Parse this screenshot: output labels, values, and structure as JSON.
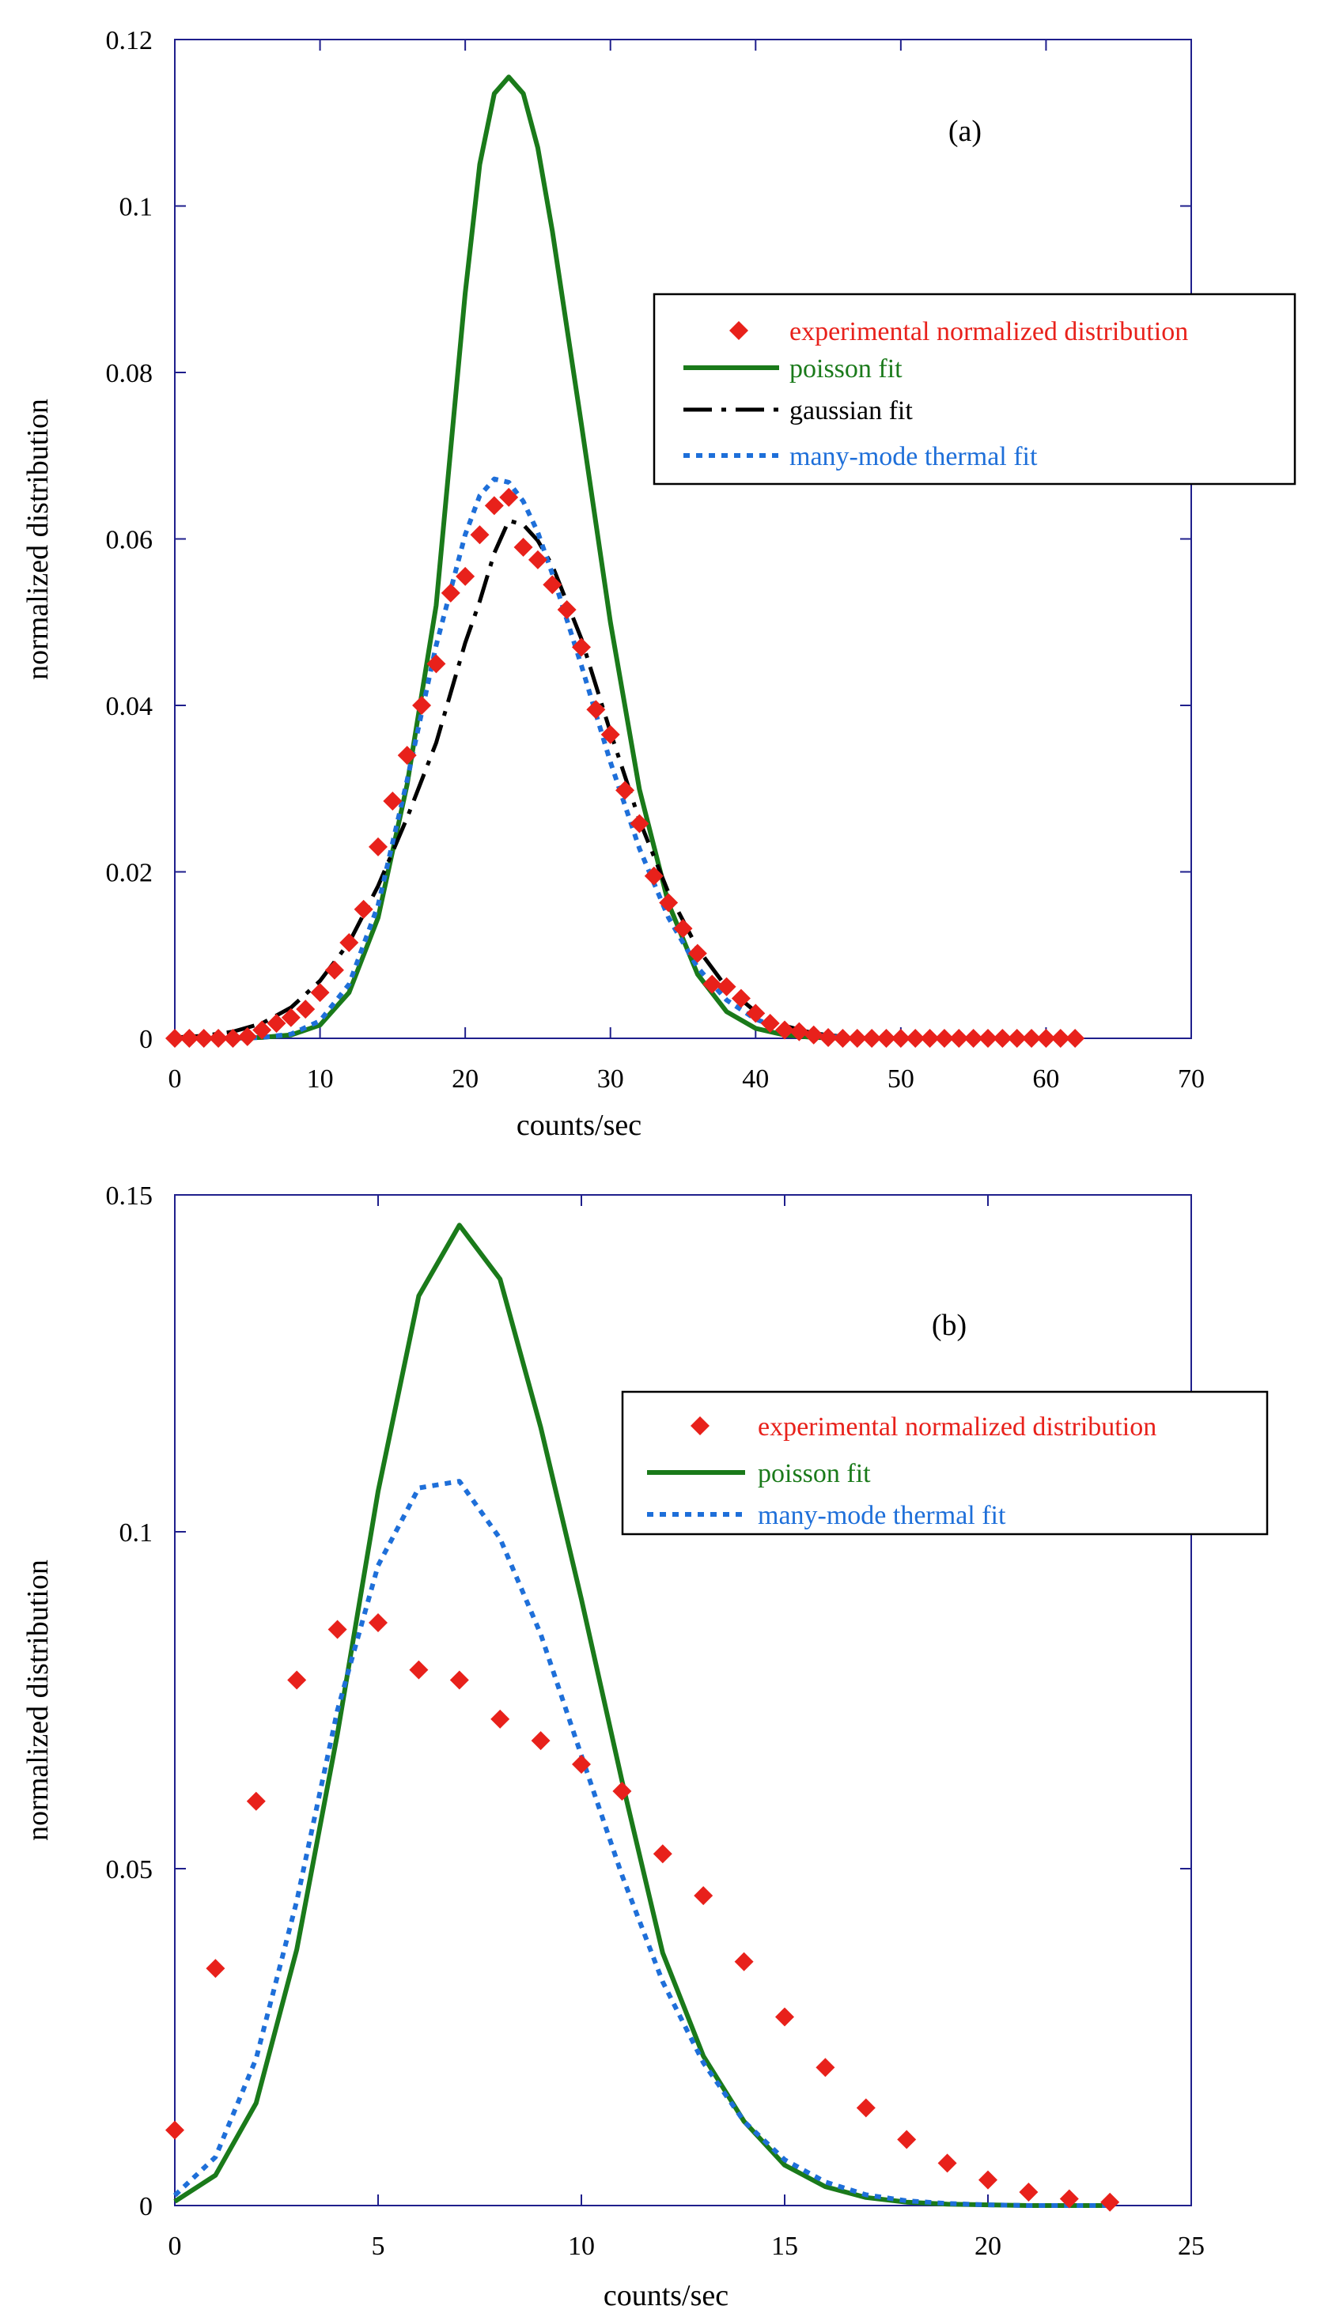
{
  "chart_data": [
    {
      "type": "scatter+line",
      "panel_label": "(a)",
      "xlabel": "counts/sec",
      "ylabel": "normalized distribution",
      "xlim": [
        0,
        70
      ],
      "ylim": [
        0,
        0.12
      ],
      "xticks": [
        "0",
        "10",
        "20",
        "30",
        "40",
        "50",
        "60",
        "70"
      ],
      "yticks": [
        "0",
        "0.02",
        "0.04",
        "0.06",
        "0.08",
        "0.1",
        "0.12"
      ],
      "legend_position": "top-right",
      "series": [
        {
          "name": "experimental normalized distribution",
          "style": "markers",
          "marker": "diamond",
          "color": "#e8211b",
          "x": [
            0,
            1,
            2,
            3,
            4,
            5,
            6,
            7,
            8,
            9,
            10,
            11,
            12,
            13,
            14,
            15,
            16,
            17,
            18,
            19,
            20,
            21,
            22,
            23,
            24,
            25,
            26,
            27,
            28,
            29,
            30,
            31,
            32,
            33,
            34,
            35,
            36,
            37,
            38,
            39,
            40,
            41,
            42,
            43,
            44,
            45,
            46,
            47,
            48,
            49,
            50,
            51,
            52,
            53,
            54,
            55,
            56,
            57,
            58,
            59,
            60,
            61,
            62
          ],
          "y": [
            0,
            0,
            0,
            0,
            0,
            0.0002,
            0.001,
            0.0018,
            0.0025,
            0.0035,
            0.0055,
            0.0082,
            0.0115,
            0.0155,
            0.023,
            0.0285,
            0.034,
            0.04,
            0.045,
            0.0535,
            0.0555,
            0.0605,
            0.064,
            0.065,
            0.059,
            0.0575,
            0.0545,
            0.0515,
            0.047,
            0.0395,
            0.0365,
            0.0298,
            0.0258,
            0.0195,
            0.0163,
            0.0132,
            0.0102,
            0.0065,
            0.0062,
            0.0048,
            0.003,
            0.0018,
            0.001,
            0.0008,
            0.0004,
            0.0001,
            0,
            0,
            0,
            0,
            0,
            0,
            0,
            0,
            0,
            0,
            0,
            0,
            0,
            0,
            0,
            0,
            0
          ]
        },
        {
          "name": "poisson fit",
          "style": "solid",
          "color": "#1a7a1a",
          "x": [
            0,
            2,
            4,
            6,
            8,
            10,
            12,
            14,
            16,
            18,
            20,
            21,
            22,
            23,
            24,
            25,
            26,
            28,
            30,
            32,
            34,
            36,
            38,
            40,
            42,
            44,
            46,
            48,
            50
          ],
          "y": [
            0,
            0,
            0,
            0.0001,
            0.0004,
            0.0016,
            0.0055,
            0.0145,
            0.0305,
            0.052,
            0.0895,
            0.105,
            0.1135,
            0.1155,
            0.1135,
            0.107,
            0.097,
            0.0738,
            0.05,
            0.0299,
            0.0162,
            0.0077,
            0.0032,
            0.0012,
            0.0004,
            0.0001,
            0,
            0,
            0
          ]
        },
        {
          "name": "gaussian fit",
          "style": "dash-dot",
          "color": "#000000",
          "x": [
            0,
            2,
            4,
            6,
            8,
            10,
            12,
            14,
            16,
            18,
            20,
            21,
            22,
            23,
            24,
            25,
            26,
            28,
            30,
            32,
            34,
            36,
            38,
            40,
            42,
            44,
            46
          ],
          "y": [
            0.0001,
            0.0003,
            0.0008,
            0.0018,
            0.0037,
            0.0069,
            0.0115,
            0.0183,
            0.0265,
            0.0355,
            0.0475,
            0.0525,
            0.0583,
            0.0622,
            0.0617,
            0.0598,
            0.0568,
            0.048,
            0.0368,
            0.0262,
            0.0175,
            0.0108,
            0.0061,
            0.0032,
            0.0015,
            0.0006,
            0.0002
          ]
        },
        {
          "name": "many-mode thermal fit",
          "style": "dotted",
          "color": "#1e6fd9",
          "x": [
            0,
            2,
            4,
            6,
            8,
            10,
            12,
            14,
            16,
            18,
            20,
            21,
            22,
            23,
            24,
            25,
            26,
            28,
            30,
            32,
            34,
            36,
            38,
            40,
            42,
            44,
            46
          ],
          "y": [
            0,
            0,
            0,
            0.0001,
            0.0005,
            0.0021,
            0.0065,
            0.016,
            0.031,
            0.0472,
            0.0605,
            0.0652,
            0.0672,
            0.0668,
            0.0645,
            0.0608,
            0.0558,
            0.0448,
            0.0332,
            0.0228,
            0.0145,
            0.0085,
            0.0046,
            0.0023,
            0.001,
            0.0004,
            0.0001
          ]
        }
      ]
    },
    {
      "type": "scatter+line",
      "panel_label": "(b)",
      "xlabel": "counts/sec",
      "ylabel": "normalized distribution",
      "xlim": [
        0,
        25
      ],
      "ylim": [
        0,
        0.15
      ],
      "xticks": [
        "0",
        "5",
        "10",
        "15",
        "20",
        "25"
      ],
      "yticks": [
        "0",
        "0.05",
        "0.1",
        "0.15"
      ],
      "legend_position": "top-right",
      "series": [
        {
          "name": "experimental normalized distribution",
          "style": "markers",
          "marker": "diamond",
          "color": "#e8211b",
          "x": [
            0,
            1,
            2,
            3,
            4,
            5,
            6,
            7,
            8,
            9,
            10,
            11,
            12,
            13,
            14,
            15,
            16,
            17,
            18,
            19,
            20,
            21,
            22,
            23
          ],
          "y": [
            0.0112,
            0.0352,
            0.06,
            0.078,
            0.0855,
            0.0865,
            0.0795,
            0.078,
            0.0722,
            0.069,
            0.0655,
            0.0615,
            0.0522,
            0.046,
            0.0362,
            0.028,
            0.0205,
            0.0145,
            0.0098,
            0.0063,
            0.0038,
            0.002,
            0.001,
            0.0005
          ]
        },
        {
          "name": "poisson fit",
          "style": "solid",
          "color": "#1a7a1a",
          "x": [
            0,
            1,
            2,
            3,
            4,
            5,
            6,
            7,
            8,
            9,
            10,
            11,
            12,
            13,
            14,
            15,
            16,
            17,
            18,
            19,
            20,
            21,
            22,
            23
          ],
          "y": [
            0.0006,
            0.0045,
            0.0152,
            0.038,
            0.07,
            0.106,
            0.135,
            0.1455,
            0.1375,
            0.1155,
            0.09,
            0.063,
            0.0375,
            0.0222,
            0.0125,
            0.006,
            0.0028,
            0.0012,
            0.0005,
            0.0002,
            0.0001,
            0,
            0,
            0
          ]
        },
        {
          "name": "many-mode thermal fit",
          "style": "dotted",
          "color": "#1e6fd9",
          "x": [
            0,
            1,
            2,
            3,
            4,
            5,
            6,
            7,
            8,
            9,
            10,
            11,
            12,
            13,
            14,
            15,
            16,
            17,
            18,
            19,
            20,
            21,
            22,
            23
          ],
          "y": [
            0.0015,
            0.0072,
            0.0218,
            0.0452,
            0.0735,
            0.095,
            0.1065,
            0.1075,
            0.099,
            0.0848,
            0.0668,
            0.049,
            0.0332,
            0.0212,
            0.0125,
            0.0068,
            0.0035,
            0.0016,
            0.0007,
            0.0003,
            0.0001,
            0,
            0,
            0
          ]
        }
      ]
    }
  ]
}
